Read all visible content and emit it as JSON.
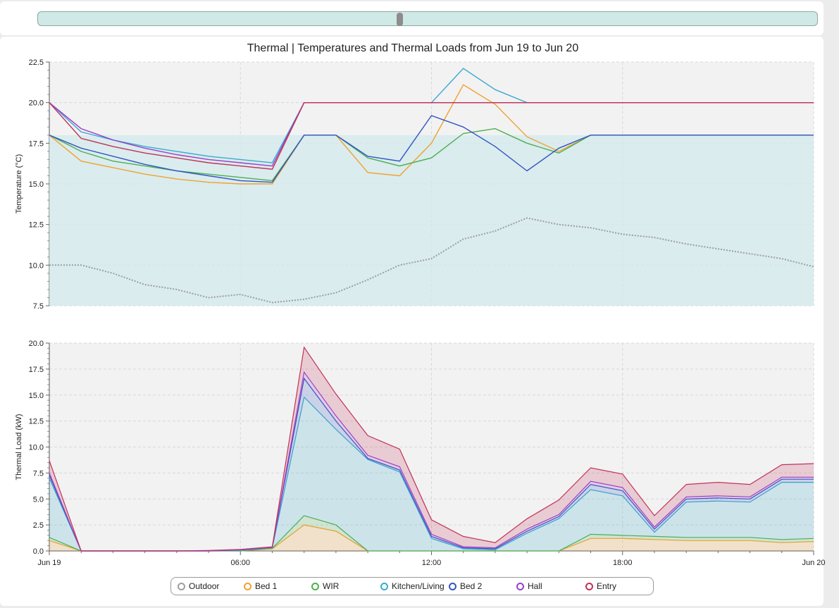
{
  "slider": {
    "value": 0.464
  },
  "chart_data": [
    {
      "type": "line",
      "title": "Thermal | Temperatures and Thermal Loads from Jun 19 to Jun 20",
      "ylabel": "Temperature (°C)",
      "ylim": [
        7.5,
        22.5
      ],
      "yticks": [
        "22.5",
        "20.0",
        "17.5",
        "15.0",
        "12.5",
        "10.0",
        "7.5"
      ],
      "comfort_band": [
        7.5,
        18
      ],
      "grid": true,
      "series": [
        {
          "name": "Outdoor",
          "color": "#9e9e9e",
          "style": "dotted",
          "x": [
            0,
            1,
            2,
            3,
            4,
            5,
            6,
            7,
            8,
            9,
            10,
            11,
            12,
            13,
            14,
            15,
            16,
            17,
            18,
            19,
            20,
            21,
            22,
            23,
            24
          ],
          "y": [
            10.0,
            10.0,
            9.5,
            8.8,
            8.5,
            8.0,
            8.2,
            7.7,
            7.9,
            8.3,
            9.1,
            10.0,
            10.4,
            11.6,
            12.1,
            12.9,
            12.5,
            12.3,
            11.9,
            11.7,
            11.3,
            11.0,
            10.7,
            10.4,
            9.9
          ]
        },
        {
          "name": "Bed 1",
          "color": "#f0a22e",
          "x": [
            0,
            1,
            2,
            3,
            4,
            5,
            6,
            7,
            8,
            9,
            10,
            11,
            12,
            13,
            14,
            15,
            16,
            17,
            18,
            19,
            20,
            21,
            22,
            23,
            24
          ],
          "y": [
            18.0,
            16.4,
            16.0,
            15.6,
            15.3,
            15.1,
            15.0,
            15.0,
            18.0,
            18.0,
            15.7,
            15.5,
            17.5,
            21.1,
            19.9,
            17.9,
            17.0,
            18.0,
            18.0,
            18.0,
            18.0,
            18.0,
            18.0,
            18.0,
            18.0
          ]
        },
        {
          "name": "WIR",
          "color": "#4caf50",
          "x": [
            0,
            1,
            2,
            3,
            4,
            5,
            6,
            7,
            8,
            9,
            10,
            11,
            12,
            13,
            14,
            15,
            16,
            17,
            18,
            19,
            20,
            21,
            22,
            23,
            24
          ],
          "y": [
            18.0,
            17.0,
            16.4,
            16.1,
            15.8,
            15.6,
            15.4,
            15.2,
            18.0,
            18.0,
            16.6,
            16.1,
            16.6,
            18.1,
            18.4,
            17.5,
            16.9,
            18.0,
            18.0,
            18.0,
            18.0,
            18.0,
            18.0,
            18.0,
            18.0
          ]
        },
        {
          "name": "Kitchen/Living",
          "color": "#3aaacf",
          "x": [
            0,
            1,
            2,
            3,
            4,
            5,
            6,
            7,
            8,
            9,
            10,
            11,
            12,
            13,
            14,
            15,
            16,
            17,
            18,
            19,
            20,
            21,
            22,
            23,
            24
          ],
          "y": [
            20.0,
            18.2,
            17.7,
            17.3,
            17.0,
            16.7,
            16.5,
            16.3,
            20.0,
            20.0,
            20.0,
            20.0,
            20.0,
            22.1,
            20.8,
            20.0,
            20.0,
            20.0,
            20.0,
            20.0,
            20.0,
            20.0,
            20.0,
            20.0,
            20.0
          ]
        },
        {
          "name": "Bed 2",
          "color": "#3454c4",
          "x": [
            0,
            1,
            2,
            3,
            4,
            5,
            6,
            7,
            8,
            9,
            10,
            11,
            12,
            13,
            14,
            15,
            16,
            17,
            18,
            19,
            20,
            21,
            22,
            23,
            24
          ],
          "y": [
            18.0,
            17.2,
            16.7,
            16.2,
            15.8,
            15.5,
            15.2,
            15.1,
            18.0,
            18.0,
            16.7,
            16.4,
            19.2,
            18.5,
            17.3,
            15.8,
            17.2,
            18.0,
            18.0,
            18.0,
            18.0,
            18.0,
            18.0,
            18.0,
            18.0
          ]
        },
        {
          "name": "Hall",
          "color": "#9c3fc9",
          "x": [
            0,
            1,
            2,
            3,
            4,
            5,
            6,
            7,
            8,
            9,
            10,
            11,
            12,
            13,
            14,
            15,
            16,
            17,
            18,
            19,
            20,
            21,
            22,
            23,
            24
          ],
          "y": [
            20.0,
            18.4,
            17.7,
            17.2,
            16.8,
            16.5,
            16.3,
            16.1,
            20.0,
            20.0,
            20.0,
            20.0,
            20.0,
            20.0,
            20.0,
            20.0,
            20.0,
            20.0,
            20.0,
            20.0,
            20.0,
            20.0,
            20.0,
            20.0,
            20.0
          ]
        },
        {
          "name": "Entry",
          "color": "#c2325a",
          "x": [
            0,
            1,
            2,
            3,
            4,
            5,
            6,
            7,
            8,
            9,
            10,
            11,
            12,
            13,
            14,
            15,
            16,
            17,
            18,
            19,
            20,
            21,
            22,
            23,
            24
          ],
          "y": [
            20.0,
            17.8,
            17.3,
            16.9,
            16.6,
            16.3,
            16.1,
            15.9,
            20.0,
            20.0,
            20.0,
            20.0,
            20.0,
            20.0,
            20.0,
            20.0,
            20.0,
            20.0,
            20.0,
            20.0,
            20.0,
            20.0,
            20.0,
            20.0,
            20.0
          ]
        }
      ]
    },
    {
      "type": "area",
      "stacked": true,
      "ylabel": "Thermal Load (kW)",
      "ylim": [
        0,
        20
      ],
      "yticks": [
        "20.0",
        "17.5",
        "15.0",
        "12.5",
        "10.0",
        "7.5",
        "5.0",
        "2.5",
        "0.0"
      ],
      "x": [
        0,
        1,
        2,
        3,
        4,
        5,
        6,
        7,
        8,
        9,
        10,
        11,
        12,
        13,
        14,
        15,
        16,
        17,
        18,
        19,
        20,
        21,
        22,
        23,
        24
      ],
      "xticks": [
        {
          "x": 0,
          "label": "Jun 19"
        },
        {
          "x": 6,
          "label": "06:00"
        },
        {
          "x": 12,
          "label": "12:00"
        },
        {
          "x": 18,
          "label": "18:00"
        },
        {
          "x": 24,
          "label": "Jun 20"
        }
      ],
      "grid": true,
      "series": [
        {
          "name": "Bed 1",
          "color": "#f0a22e",
          "values": [
            1.0,
            0,
            0,
            0,
            0,
            0,
            0,
            0.2,
            2.5,
            1.9,
            0,
            0,
            0,
            0,
            0,
            0,
            0,
            1.2,
            1.2,
            1.1,
            1.0,
            1.0,
            1.0,
            0.8,
            0.9
          ]
        },
        {
          "name": "WIR",
          "color": "#4caf50",
          "values": [
            0.3,
            0,
            0,
            0,
            0,
            0,
            0,
            0.05,
            0.9,
            0.6,
            0,
            0,
            0,
            0,
            0,
            0,
            0,
            0.4,
            0.3,
            0.3,
            0.3,
            0.3,
            0.3,
            0.3,
            0.3
          ]
        },
        {
          "name": "Kitchen/Living",
          "color": "#3aaacf",
          "values": [
            5.7,
            0,
            0,
            0,
            0,
            0,
            0.05,
            0.05,
            11.4,
            9.2,
            8.8,
            7.6,
            1.2,
            0.2,
            0.1,
            1.7,
            3.1,
            4.3,
            3.8,
            0.4,
            3.4,
            3.5,
            3.4,
            5.5,
            5.4
          ]
        },
        {
          "name": "Bed 2",
          "color": "#3454c4",
          "values": [
            0.3,
            0,
            0,
            0,
            0,
            0,
            0.05,
            0.05,
            1.8,
            0.8,
            0.1,
            0.2,
            0.2,
            0.1,
            0.1,
            0.2,
            0.2,
            0.5,
            0.5,
            0.3,
            0.3,
            0.3,
            0.3,
            0.3,
            0.3
          ]
        },
        {
          "name": "Hall",
          "color": "#9c3fc9",
          "values": [
            0.2,
            0,
            0,
            0,
            0,
            0,
            0,
            0,
            0.6,
            0.5,
            0.3,
            0.3,
            0.2,
            0.1,
            0.1,
            0.2,
            0.2,
            0.3,
            0.3,
            0.2,
            0.2,
            0.2,
            0.2,
            0.2,
            0.2
          ]
        },
        {
          "name": "Entry",
          "color": "#c2325a",
          "values": [
            1.2,
            0,
            0,
            0,
            0,
            0.05,
            0.05,
            0.05,
            2.4,
            2.1,
            1.9,
            1.7,
            1.4,
            1.0,
            0.5,
            1.0,
            1.4,
            1.3,
            1.3,
            1.1,
            1.2,
            1.3,
            1.2,
            1.2,
            1.3
          ]
        }
      ]
    }
  ],
  "legend": [
    {
      "name": "Outdoor",
      "color": "#9e9e9e"
    },
    {
      "name": "Bed 1",
      "color": "#f0a22e"
    },
    {
      "name": "WIR",
      "color": "#4caf50"
    },
    {
      "name": "Kitchen/Living",
      "color": "#3aaacf"
    },
    {
      "name": "Bed 2",
      "color": "#3454c4"
    },
    {
      "name": "Hall",
      "color": "#9c3fc9"
    },
    {
      "name": "Entry",
      "color": "#c2325a"
    }
  ]
}
